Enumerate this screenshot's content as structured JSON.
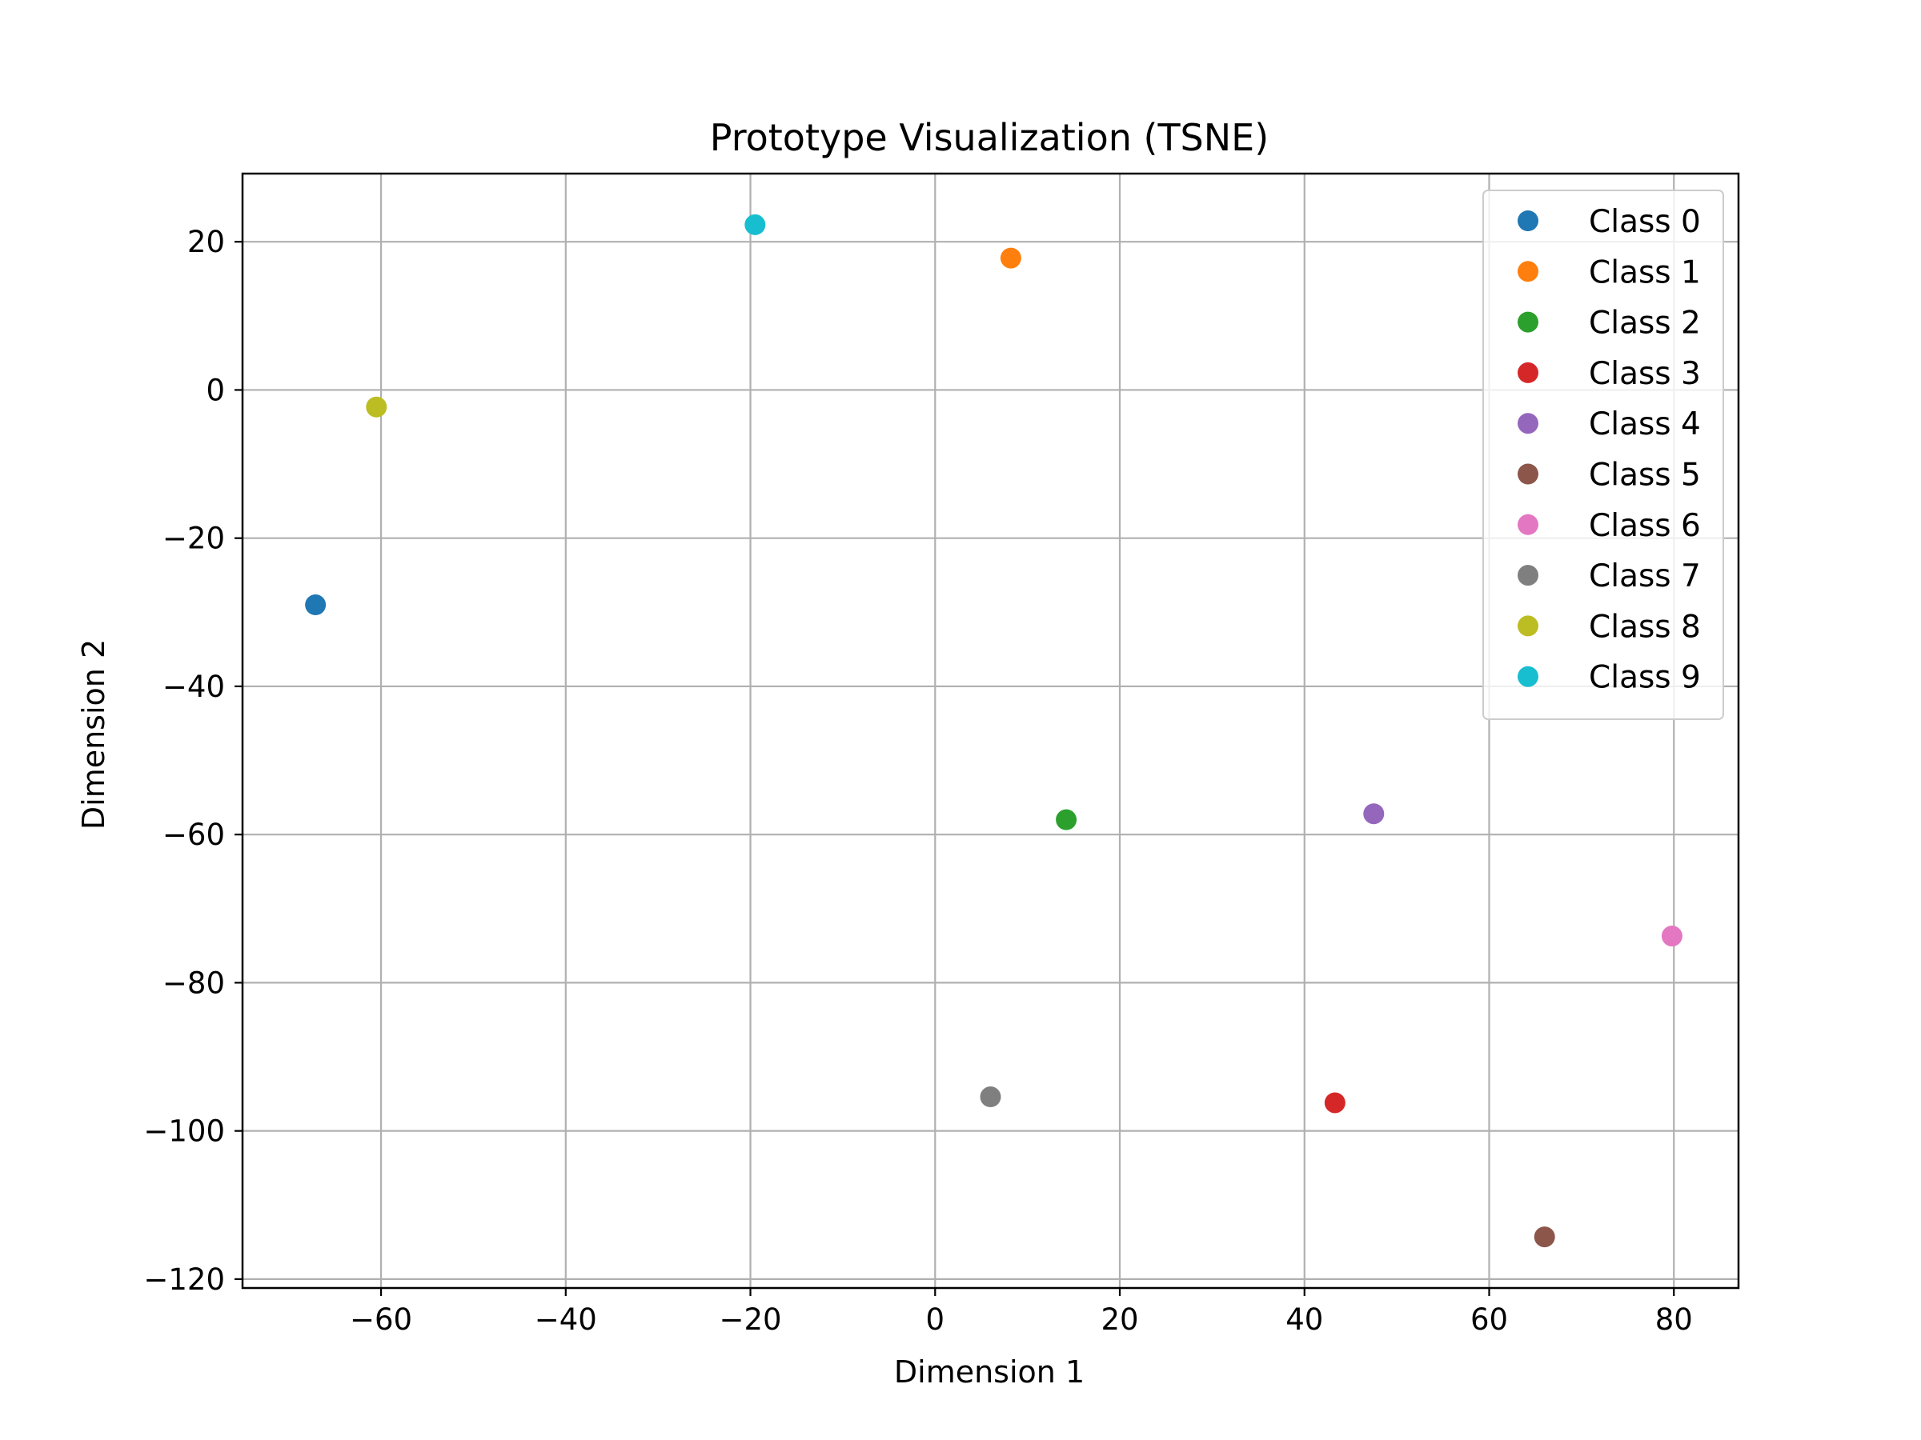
{
  "chart_data": {
    "type": "scatter",
    "title": "Prototype Visualization (TSNE)",
    "xlabel": "Dimension 1",
    "ylabel": "Dimension 2",
    "xlim": [
      -75,
      87
    ],
    "ylim": [
      -121.2,
      29.2
    ],
    "xticks": [
      -60,
      -40,
      -20,
      0,
      20,
      40,
      60,
      80
    ],
    "yticks": [
      -120,
      -100,
      -80,
      -60,
      -40,
      -20,
      0,
      20
    ],
    "grid": true,
    "legend_position": "top-right",
    "series": [
      {
        "name": "Class 0",
        "color": "#1f77b4",
        "x": [
          -67.1
        ],
        "y": [
          -29.0
        ]
      },
      {
        "name": "Class 1",
        "color": "#ff7f0e",
        "x": [
          8.2
        ],
        "y": [
          17.8
        ]
      },
      {
        "name": "Class 2",
        "color": "#2ca02c",
        "x": [
          14.2
        ],
        "y": [
          -58.0
        ]
      },
      {
        "name": "Class 3",
        "color": "#d62728",
        "x": [
          43.3
        ],
        "y": [
          -96.2
        ]
      },
      {
        "name": "Class 4",
        "color": "#9467bd",
        "x": [
          47.5
        ],
        "y": [
          -57.2
        ]
      },
      {
        "name": "Class 5",
        "color": "#8c564b",
        "x": [
          66.0
        ],
        "y": [
          -114.3
        ]
      },
      {
        "name": "Class 6",
        "color": "#e377c2",
        "x": [
          79.8
        ],
        "y": [
          -73.7
        ]
      },
      {
        "name": "Class 7",
        "color": "#7f7f7f",
        "x": [
          6.0
        ],
        "y": [
          -95.4
        ]
      },
      {
        "name": "Class 8",
        "color": "#bcbd22",
        "x": [
          -60.5
        ],
        "y": [
          -2.3
        ]
      },
      {
        "name": "Class 9",
        "color": "#17becf",
        "x": [
          -19.5
        ],
        "y": [
          22.3
        ]
      }
    ]
  }
}
